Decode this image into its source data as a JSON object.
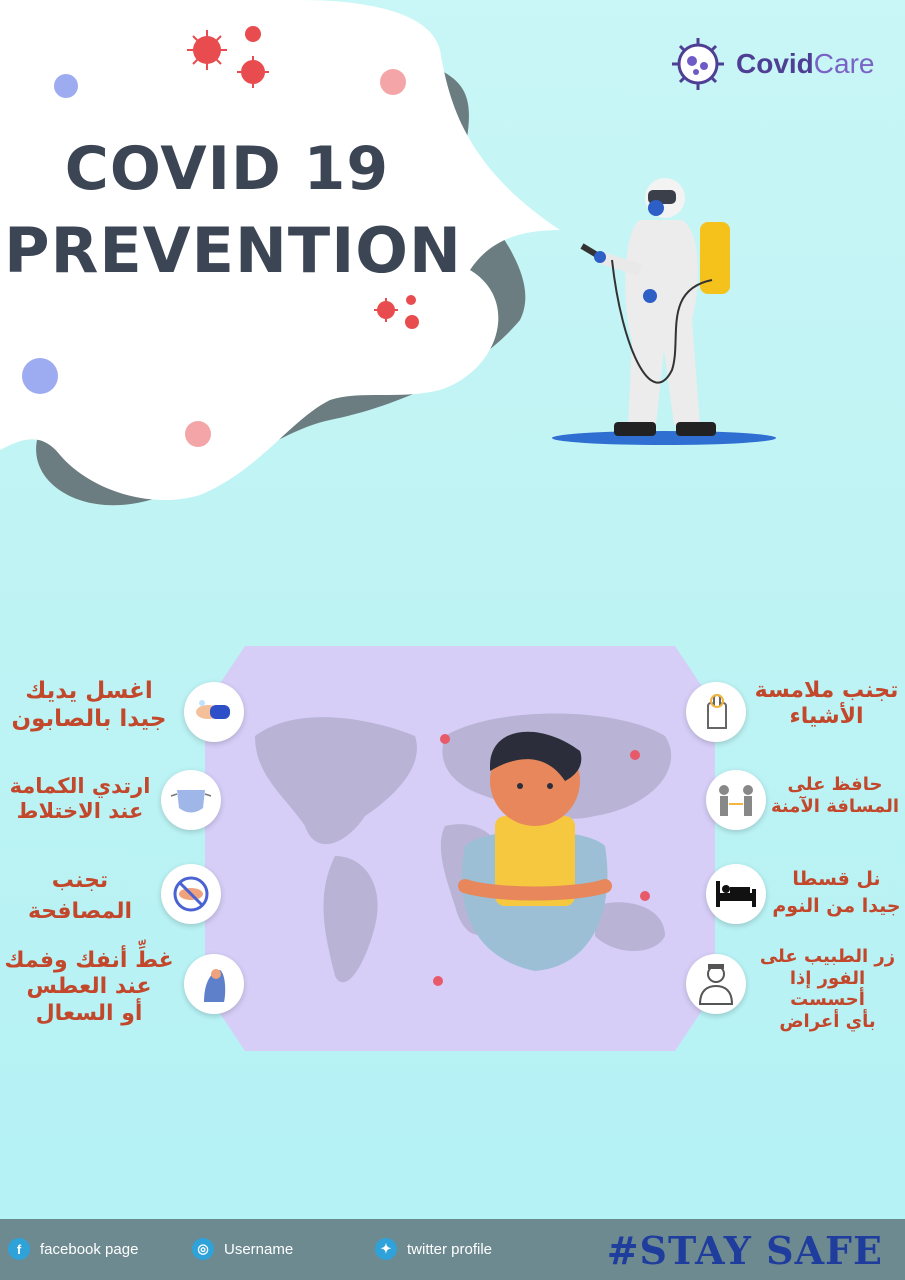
{
  "header": {
    "title_line1": "COVID 19",
    "title_line2": "PREVENTION"
  },
  "brand": {
    "name_part1": "Covid",
    "name_part2": "Care",
    "icon": "virus-logo-icon"
  },
  "illustration": {
    "top_figure": "worker-in-hazmat-spraying-icon",
    "center_figure": "sick-man-with-scarf-icon",
    "background": "world-map-icon"
  },
  "tips_left": [
    {
      "text": "اغسل يديك\nجيدا بالصابون",
      "icon": "hand-washing-icon"
    },
    {
      "text": "ارتدي الكمامة\nعند الاختلاط",
      "icon": "face-mask-icon"
    },
    {
      "text": "تجنب\nالمصافحة",
      "icon": "no-handshake-icon"
    },
    {
      "text": "غطِّ أنفك وفمك\nعند العطس\nأو السعال",
      "icon": "cover-sneeze-icon"
    }
  ],
  "tips_right": [
    {
      "text": "تجنب ملامسة\nالأشياء",
      "icon": "touch-hand-icon"
    },
    {
      "text": "حافظ على\nالمسافة الآمنة",
      "icon": "social-distance-icon"
    },
    {
      "text": "نل قسطا\nجيدا من النوم",
      "icon": "bed-icon"
    },
    {
      "text": "زر الطبيب على\nالفور إذا أحسست\nبأي أعراض",
      "icon": "doctor-icon"
    }
  ],
  "footer": {
    "facebook_label": "facebook page",
    "instagram_label": "Username",
    "twitter_label": "twitter profile",
    "slogan": "#STAY SAFE"
  },
  "colors": {
    "title": "#3b4554",
    "tip_text": "#c2472b",
    "slogan": "#1f3d9c",
    "footer_bg": "#6d8a91",
    "brand_dark": "#4e3f95",
    "brand_light": "#7a63c6"
  }
}
